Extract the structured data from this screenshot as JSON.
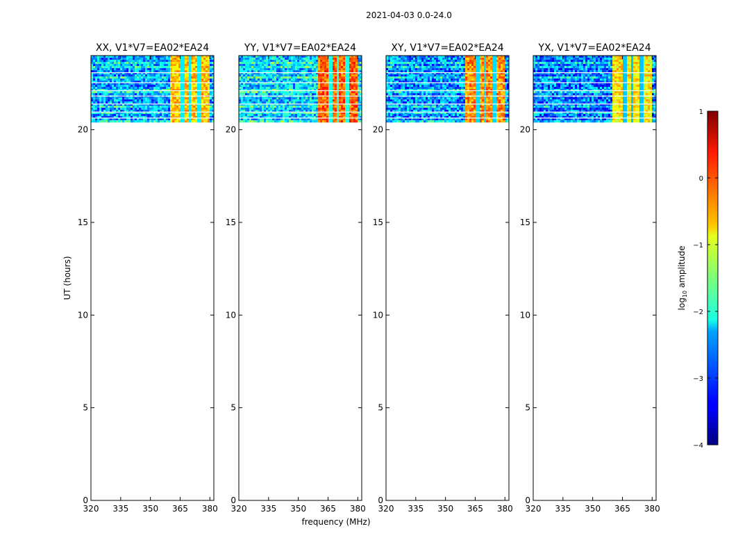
{
  "suptitle": "2021-04-03 0.0-24.0",
  "chart_data": {
    "type": "heatmap",
    "xlabel": "frequency (MHz)",
    "ylabel": "UT (hours)",
    "xlim": [
      320,
      382
    ],
    "ylim": [
      0,
      24
    ],
    "x_ticks": [
      320,
      335,
      350,
      365,
      380
    ],
    "y_ticks": [
      0,
      5,
      10,
      15,
      20
    ],
    "data_ut_range": [
      20.4,
      24.0
    ],
    "panels": [
      {
        "title": "XX, V1*V7=EA02*EA24",
        "rfi_band_mhz": [
          359.5,
          379.5
        ],
        "rfi_level": -0.6,
        "background_level": -2.6
      },
      {
        "title": "YY, V1*V7=EA02*EA24",
        "rfi_band_mhz": [
          359.5,
          379.5
        ],
        "rfi_level": -0.1,
        "background_level": -2.4
      },
      {
        "title": "XY, V1*V7=EA02*EA24",
        "rfi_band_mhz": [
          359.5,
          379.5
        ],
        "rfi_level": -0.3,
        "background_level": -2.7
      },
      {
        "title": "YX, V1*V7=EA02*EA24",
        "rfi_band_mhz": [
          359.5,
          379.5
        ],
        "rfi_level": -0.8,
        "background_level": -2.8
      }
    ],
    "colorbar": {
      "label_prefix": "log",
      "label_sub": "10",
      "label_suffix": " amplitude",
      "range": [
        -4,
        1
      ],
      "ticks": [
        "1",
        "0",
        "−1",
        "−2",
        "−3",
        "−4"
      ],
      "colormap": "jet"
    }
  }
}
